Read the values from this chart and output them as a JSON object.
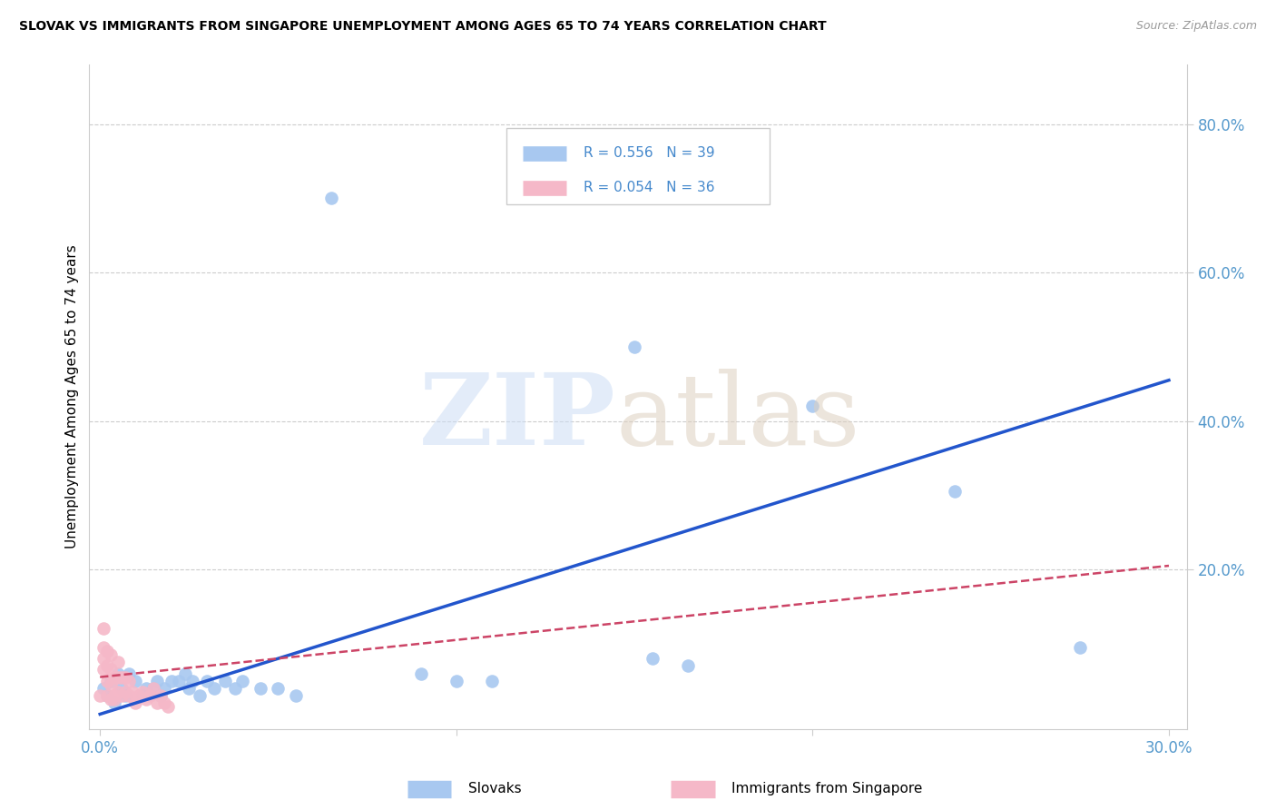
{
  "title": "SLOVAK VS IMMIGRANTS FROM SINGAPORE UNEMPLOYMENT AMONG AGES 65 TO 74 YEARS CORRELATION CHART",
  "source": "Source: ZipAtlas.com",
  "ylabel": "Unemployment Among Ages 65 to 74 years",
  "right_yticks": [
    "80.0%",
    "60.0%",
    "40.0%",
    "20.0%"
  ],
  "right_ytick_vals": [
    0.8,
    0.6,
    0.4,
    0.2
  ],
  "xmin": -0.003,
  "xmax": 0.305,
  "ymin": -0.015,
  "ymax": 0.88,
  "legend_r_slovak": "R = 0.556",
  "legend_n_slovak": "N = 39",
  "legend_r_singapore": "R = 0.054",
  "legend_n_singapore": "N = 36",
  "slovak_color": "#a8c8f0",
  "singapore_color": "#f5b8c8",
  "line_slovak_color": "#2255cc",
  "line_singapore_color": "#cc4466",
  "slovak_pts_x": [
    0.001,
    0.002,
    0.003,
    0.004,
    0.005,
    0.006,
    0.007,
    0.008,
    0.01,
    0.012,
    0.013,
    0.015,
    0.016,
    0.017,
    0.018,
    0.02,
    0.022,
    0.024,
    0.025,
    0.026,
    0.028,
    0.03,
    0.032,
    0.035,
    0.038,
    0.04,
    0.045,
    0.05,
    0.055,
    0.065,
    0.09,
    0.1,
    0.11,
    0.15,
    0.155,
    0.165,
    0.2,
    0.24,
    0.275
  ],
  "slovak_pts_y": [
    0.04,
    0.03,
    0.05,
    0.02,
    0.06,
    0.04,
    0.03,
    0.06,
    0.05,
    0.03,
    0.04,
    0.04,
    0.05,
    0.03,
    0.04,
    0.05,
    0.05,
    0.06,
    0.04,
    0.05,
    0.03,
    0.05,
    0.04,
    0.05,
    0.04,
    0.05,
    0.04,
    0.04,
    0.03,
    0.7,
    0.06,
    0.05,
    0.05,
    0.5,
    0.08,
    0.07,
    0.42,
    0.305,
    0.095
  ],
  "singapore_pts_x": [
    0.0,
    0.001,
    0.001,
    0.001,
    0.001,
    0.002,
    0.002,
    0.002,
    0.002,
    0.003,
    0.003,
    0.003,
    0.003,
    0.004,
    0.004,
    0.004,
    0.005,
    0.005,
    0.005,
    0.006,
    0.006,
    0.007,
    0.007,
    0.008,
    0.008,
    0.009,
    0.01,
    0.011,
    0.012,
    0.013,
    0.014,
    0.015,
    0.016,
    0.017,
    0.018,
    0.019
  ],
  "singapore_pts_y": [
    0.03,
    0.065,
    0.08,
    0.095,
    0.12,
    0.03,
    0.05,
    0.07,
    0.09,
    0.025,
    0.045,
    0.065,
    0.085,
    0.025,
    0.055,
    0.03,
    0.035,
    0.055,
    0.075,
    0.03,
    0.055,
    0.035,
    0.055,
    0.03,
    0.05,
    0.035,
    0.02,
    0.03,
    0.035,
    0.025,
    0.03,
    0.04,
    0.02,
    0.03,
    0.02,
    0.015
  ],
  "sk_line_x": [
    0.0,
    0.3
  ],
  "sk_line_y": [
    0.005,
    0.455
  ],
  "sg_line_x": [
    0.0,
    0.3
  ],
  "sg_line_y": [
    0.055,
    0.205
  ],
  "xtick_positions": [
    0.0,
    0.1,
    0.2,
    0.3
  ],
  "xtick_labels": [
    "0.0%",
    "",
    "",
    "30.0%"
  ]
}
